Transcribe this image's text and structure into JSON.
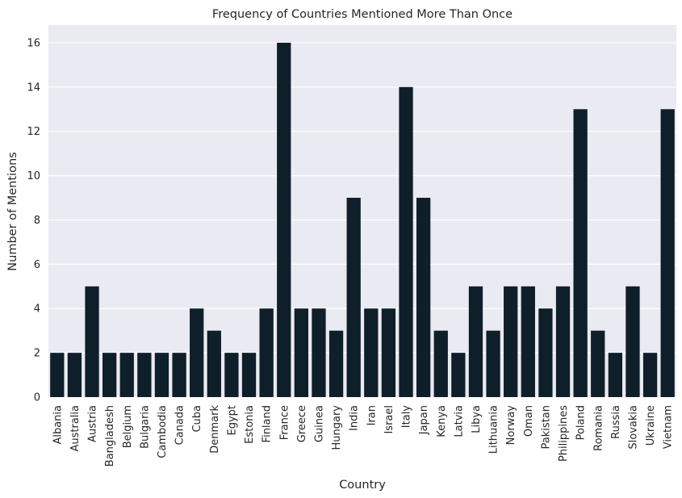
{
  "chart_data": {
    "type": "bar",
    "title": "Frequency of Countries Mentioned More Than Once",
    "xlabel": "Country",
    "ylabel": "Number of Mentions",
    "ylim": [
      0,
      16.8
    ],
    "yticks": [
      0,
      2,
      4,
      6,
      8,
      10,
      12,
      14,
      16
    ],
    "grid": true,
    "categories": [
      "Albania",
      "Australia",
      "Austria",
      "Bangladesh",
      "Belgium",
      "Bulgaria",
      "Cambodia",
      "Canada",
      "Cuba",
      "Denmark",
      "Egypt",
      "Estonia",
      "Finland",
      "France",
      "Greece",
      "Guinea",
      "Hungary",
      "India",
      "Iran",
      "Israel",
      "Italy",
      "Japan",
      "Kenya",
      "Latvia",
      "Libya",
      "Lithuania",
      "Norway",
      "Oman",
      "Pakistan",
      "Philippines",
      "Poland",
      "Romania",
      "Russia",
      "Slovakia",
      "Ukraine",
      "Vietnam"
    ],
    "values": [
      2,
      2,
      5,
      2,
      2,
      2,
      2,
      2,
      4,
      3,
      2,
      2,
      4,
      16,
      4,
      4,
      3,
      9,
      4,
      4,
      14,
      9,
      3,
      2,
      5,
      3,
      5,
      5,
      4,
      5,
      13,
      3,
      2,
      5,
      2,
      13
    ],
    "colors": {
      "bar": "#0f1f2a",
      "plot_background": "#eaeaf2",
      "grid": "#ffffff",
      "text": "#262626"
    }
  }
}
